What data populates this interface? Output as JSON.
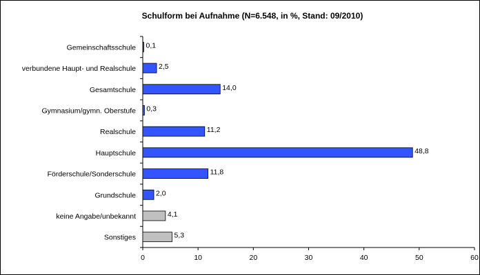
{
  "chart_data": {
    "type": "bar",
    "orientation": "horizontal",
    "title": "Schulform bei Aufnahme (N=6.548, in %, Stand: 09/2010)",
    "xlabel": "",
    "ylabel": "",
    "categories": [
      "Gemeinschaftsschule",
      "verbundene Haupt- und Realschule",
      "Gesamtschule",
      "Gymnasium/gymn. Oberstufe",
      "Realschule",
      "Hauptschule",
      "Förderschule/Sonderschule",
      "Grundschule",
      "keine Angabe/unbekannt",
      "Sonstiges"
    ],
    "values": [
      0.1,
      2.5,
      14.0,
      0.3,
      11.2,
      48.8,
      11.8,
      2.0,
      4.1,
      5.3
    ],
    "value_labels": [
      "0,1",
      "2,5",
      "14,0",
      "0,3",
      "11,2",
      "48,8",
      "11,8",
      "2,0",
      "4,1",
      "5,3"
    ],
    "bar_colors": [
      "#3355ff",
      "#3355ff",
      "#3355ff",
      "#3355ff",
      "#3355ff",
      "#3355ff",
      "#3355ff",
      "#3355ff",
      "#c0c0c0",
      "#c0c0c0"
    ],
    "xlim": [
      0,
      60
    ],
    "xticks": [
      0,
      10,
      20,
      30,
      40,
      50,
      60
    ],
    "xtick_labels": [
      "0",
      "10",
      "20",
      "30",
      "40",
      "50",
      "60"
    ],
    "grid": false,
    "legend": "none"
  }
}
